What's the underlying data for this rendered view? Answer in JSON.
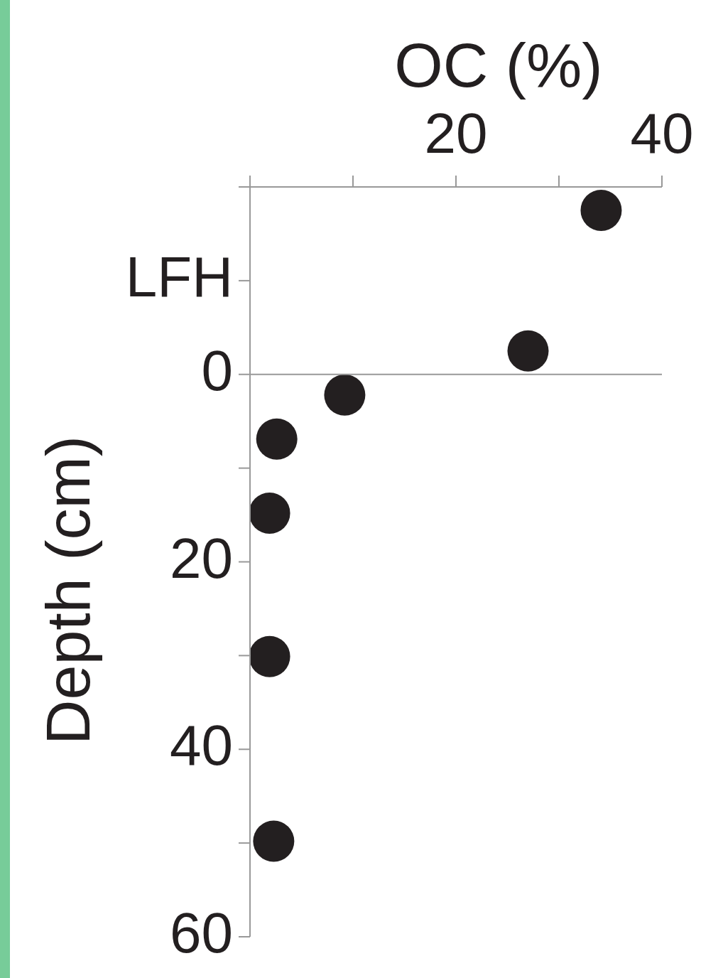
{
  "chart_data": {
    "type": "scatter",
    "xlabel": "OC (%)",
    "ylabel": "Depth (cm)",
    "x": [
      34.1,
      27.0,
      9.2,
      2.6,
      1.9,
      1.9,
      2.3
    ],
    "values": [
      -17.5,
      -2.5,
      2.2,
      6.9,
      14.8,
      30.1,
      49.8
    ],
    "color": "#231f20",
    "marker": "circle",
    "grid": false,
    "legend": false,
    "xlim": [
      0,
      40
    ],
    "xticks": [
      {
        "value": 0,
        "label": null
      },
      {
        "value": 10,
        "label": null
      },
      20,
      {
        "value": 30,
        "label": null
      },
      40
    ],
    "ylim": [
      60,
      -20
    ],
    "yticks": [
      {
        "value": -20,
        "label": null
      },
      {
        "value": -10,
        "label": "LFH"
      },
      0,
      {
        "value": 10,
        "label": null
      },
      20,
      {
        "value": 30,
        "label": null
      },
      40,
      {
        "value": 50,
        "label": null
      },
      60
    ],
    "ref_lines": [
      {
        "axis": "y",
        "value": 0,
        "color": "#999999"
      }
    ]
  }
}
